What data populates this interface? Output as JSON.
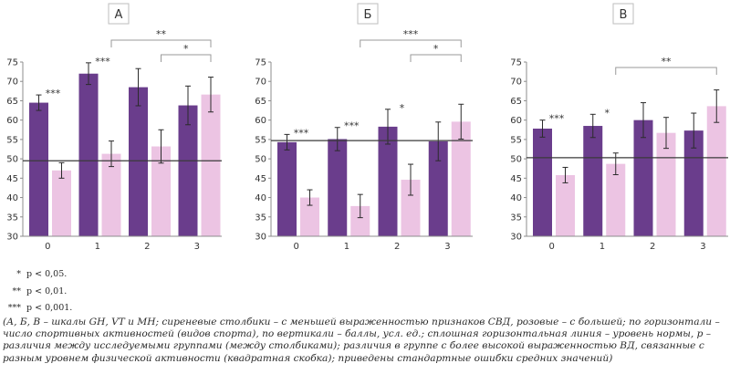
{
  "chart_data": [
    {
      "type": "bar",
      "panel_label": "А",
      "categories": [
        "0",
        "1",
        "2",
        "3"
      ],
      "series": [
        {
          "values": [
            64.5,
            72.0,
            68.5,
            63.8
          ],
          "errors": [
            2.0,
            2.8,
            4.8,
            5.0
          ],
          "color": "#6a3d8c"
        },
        {
          "values": [
            47.0,
            51.3,
            53.2,
            66.6
          ],
          "errors": [
            2.0,
            3.3,
            4.3,
            4.5
          ],
          "color": "#ecc4e3"
        }
      ],
      "reference_line": 49.5,
      "ylim": [
        30,
        75
      ],
      "yticks": [
        "30",
        "35",
        "40",
        "45",
        "50",
        "55",
        "60",
        "65",
        "70",
        "75"
      ],
      "pair_stars": [
        "***",
        "***",
        "",
        ""
      ],
      "brackets": [
        {
          "from": 1,
          "to": 3,
          "label": "**"
        },
        {
          "from": 2,
          "to": 3,
          "label": "*"
        }
      ],
      "grid": false
    },
    {
      "type": "bar",
      "panel_label": "Б",
      "categories": [
        "0",
        "1",
        "2",
        "3"
      ],
      "series": [
        {
          "values": [
            54.3,
            55.1,
            58.3,
            54.5
          ],
          "errors": [
            2.0,
            3.0,
            4.5,
            5.0
          ],
          "color": "#6a3d8c"
        },
        {
          "values": [
            40.0,
            37.8,
            44.6,
            59.6
          ],
          "errors": [
            2.0,
            3.0,
            4.0,
            4.5
          ],
          "color": "#ecc4e3"
        }
      ],
      "reference_line": 54.7,
      "ylim": [
        30,
        75
      ],
      "yticks": [
        "30",
        "35",
        "40",
        "45",
        "50",
        "55",
        "60",
        "65",
        "70",
        "75"
      ],
      "pair_stars": [
        "***",
        "***",
        "*",
        ""
      ],
      "brackets": [
        {
          "from": 1,
          "to": 3,
          "label": "***"
        },
        {
          "from": 2,
          "to": 3,
          "label": "*"
        }
      ],
      "grid": false
    },
    {
      "type": "bar",
      "panel_label": "В",
      "categories": [
        "0",
        "1",
        "2",
        "3"
      ],
      "series": [
        {
          "values": [
            57.8,
            58.5,
            60.0,
            57.3
          ],
          "errors": [
            2.2,
            3.0,
            4.5,
            4.5
          ],
          "color": "#6a3d8c"
        },
        {
          "values": [
            45.8,
            48.7,
            56.7,
            63.6
          ],
          "errors": [
            2.0,
            2.8,
            4.0,
            4.2
          ],
          "color": "#ecc4e3"
        }
      ],
      "reference_line": 50.3,
      "ylim": [
        30,
        75
      ],
      "yticks": [
        "30",
        "35",
        "40",
        "45",
        "50",
        "55",
        "60",
        "65",
        "70",
        "75"
      ],
      "pair_stars": [
        "***",
        "*",
        "",
        ""
      ],
      "brackets": [
        {
          "from": 1,
          "to": 3,
          "label": "**"
        }
      ],
      "grid": false
    }
  ],
  "significance_legend": [
    {
      "marker": "*",
      "text": "p < 0,05."
    },
    {
      "marker": "**",
      "text": "p < 0,01."
    },
    {
      "marker": "***",
      "text": "p < 0,001."
    }
  ],
  "caption": "(А, Б, В – шкалы GH, VT и MH; сиреневые столбики – с меньшей выраженностью признаков СВД, розовые – с большей; по горизонтали – число спортивных активностей (видов спорта), по вертикали – баллы, усл. ед.; сплошная горизонтальная линия – уровень нормы, р – различия между исследуемыми группами (между столбиками); различия в группе с более высокой выраженностью ВД, связанные с разным уровнем физической активности (квадратная скобка); приведены стандартные ошибки средних значений)"
}
